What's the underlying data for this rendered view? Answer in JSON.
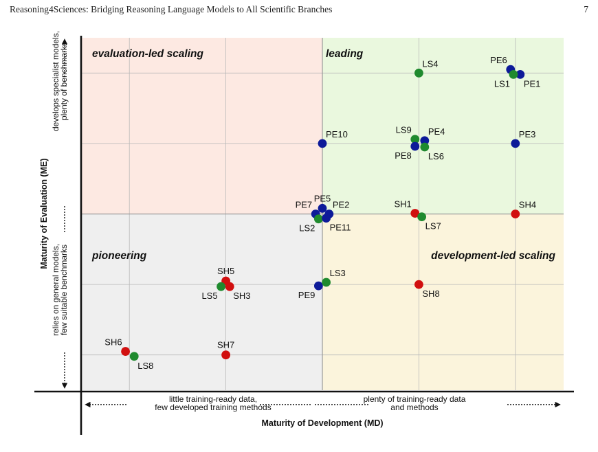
{
  "header": {
    "title": "Reasoning4Sciences: Bridging Reasoning Language Models to All Scientific Branches",
    "page_number": "7"
  },
  "chart_data": {
    "type": "scatter",
    "xlabel": "Maturity of Development (MD)",
    "ylabel": "Maturity of Evaluation (ME)",
    "xlim": [
      0.5,
      5.5
    ],
    "ylim": [
      0.5,
      5.5
    ],
    "quadrants": {
      "top_left": "evaluation-led scaling",
      "top_right": "leading",
      "bottom_left": "pioneering",
      "bottom_right": "development-led scaling"
    },
    "quadrant_colors": {
      "top_left": "#fde9e2",
      "top_right": "#eaf8de",
      "bottom_left": "#efefef",
      "bottom_right": "#fbf4dc"
    },
    "x_annotations": {
      "low": [
        "little training-ready data,",
        "few developed training methods"
      ],
      "high": [
        "plenty of training-ready data",
        "and methods"
      ]
    },
    "y_annotations": {
      "low": [
        "relies on general models,",
        "few suitable benchmarks"
      ],
      "high": [
        "develops specialist models,",
        "plenty of benchmarks"
      ]
    },
    "series_colors": {
      "PE": "#0d1a99",
      "LS": "#1f8a2e",
      "SH": "#d10f0f"
    },
    "points": [
      {
        "label": "PE6",
        "group": "PE",
        "x": 4.95,
        "y": 5.05,
        "label_pos": "tl"
      },
      {
        "label": "PE1",
        "group": "PE",
        "x": 5.05,
        "y": 4.98,
        "label_pos": "br"
      },
      {
        "label": "LS1",
        "group": "LS",
        "x": 4.98,
        "y": 4.98,
        "label_pos": "bl"
      },
      {
        "label": "LS4",
        "group": "LS",
        "x": 4.0,
        "y": 5.0,
        "label_pos": "tr"
      },
      {
        "label": "PE10",
        "group": "PE",
        "x": 3.0,
        "y": 4.0,
        "label_pos": "tr"
      },
      {
        "label": "LS9",
        "group": "LS",
        "x": 3.96,
        "y": 4.06,
        "label_pos": "tl"
      },
      {
        "label": "PE4",
        "group": "PE",
        "x": 4.06,
        "y": 4.04,
        "label_pos": "tr"
      },
      {
        "label": "PE8",
        "group": "PE",
        "x": 3.96,
        "y": 3.96,
        "label_pos": "bl"
      },
      {
        "label": "LS6",
        "group": "LS",
        "x": 4.06,
        "y": 3.95,
        "label_pos": "br"
      },
      {
        "label": "PE3",
        "group": "PE",
        "x": 5.0,
        "y": 4.0,
        "label_pos": "tr"
      },
      {
        "label": "PE5",
        "group": "PE",
        "x": 3.0,
        "y": 3.08,
        "label_pos": "t"
      },
      {
        "label": "PE7",
        "group": "PE",
        "x": 2.93,
        "y": 3.0,
        "label_pos": "tl"
      },
      {
        "label": "PE2",
        "group": "PE",
        "x": 3.07,
        "y": 3.0,
        "label_pos": "tr"
      },
      {
        "label": "LS2",
        "group": "LS",
        "x": 2.96,
        "y": 2.93,
        "label_pos": "bl"
      },
      {
        "label": "PE11",
        "group": "PE",
        "x": 3.04,
        "y": 2.94,
        "label_pos": "br"
      },
      {
        "label": "SH1",
        "group": "SH",
        "x": 3.96,
        "y": 3.01,
        "label_pos": "tl"
      },
      {
        "label": "LS7",
        "group": "LS",
        "x": 4.03,
        "y": 2.96,
        "label_pos": "br"
      },
      {
        "label": "SH4",
        "group": "SH",
        "x": 5.0,
        "y": 3.0,
        "label_pos": "tr"
      },
      {
        "label": "SH5",
        "group": "SH",
        "x": 2.0,
        "y": 2.05,
        "label_pos": "t"
      },
      {
        "label": "LS5",
        "group": "LS",
        "x": 1.95,
        "y": 1.97,
        "label_pos": "bl"
      },
      {
        "label": "SH3",
        "group": "SH",
        "x": 2.04,
        "y": 1.97,
        "label_pos": "br"
      },
      {
        "label": "PE9",
        "group": "PE",
        "x": 2.96,
        "y": 1.98,
        "label_pos": "bl"
      },
      {
        "label": "LS3",
        "group": "LS",
        "x": 3.04,
        "y": 2.03,
        "label_pos": "tr"
      },
      {
        "label": "SH8",
        "group": "SH",
        "x": 4.0,
        "y": 2.0,
        "label_pos": "br"
      },
      {
        "label": "SH6",
        "group": "SH",
        "x": 0.96,
        "y": 1.05,
        "label_pos": "tl"
      },
      {
        "label": "LS8",
        "group": "LS",
        "x": 1.05,
        "y": 0.98,
        "label_pos": "br"
      },
      {
        "label": "SH7",
        "group": "SH",
        "x": 2.0,
        "y": 1.0,
        "label_pos": "t"
      }
    ]
  }
}
